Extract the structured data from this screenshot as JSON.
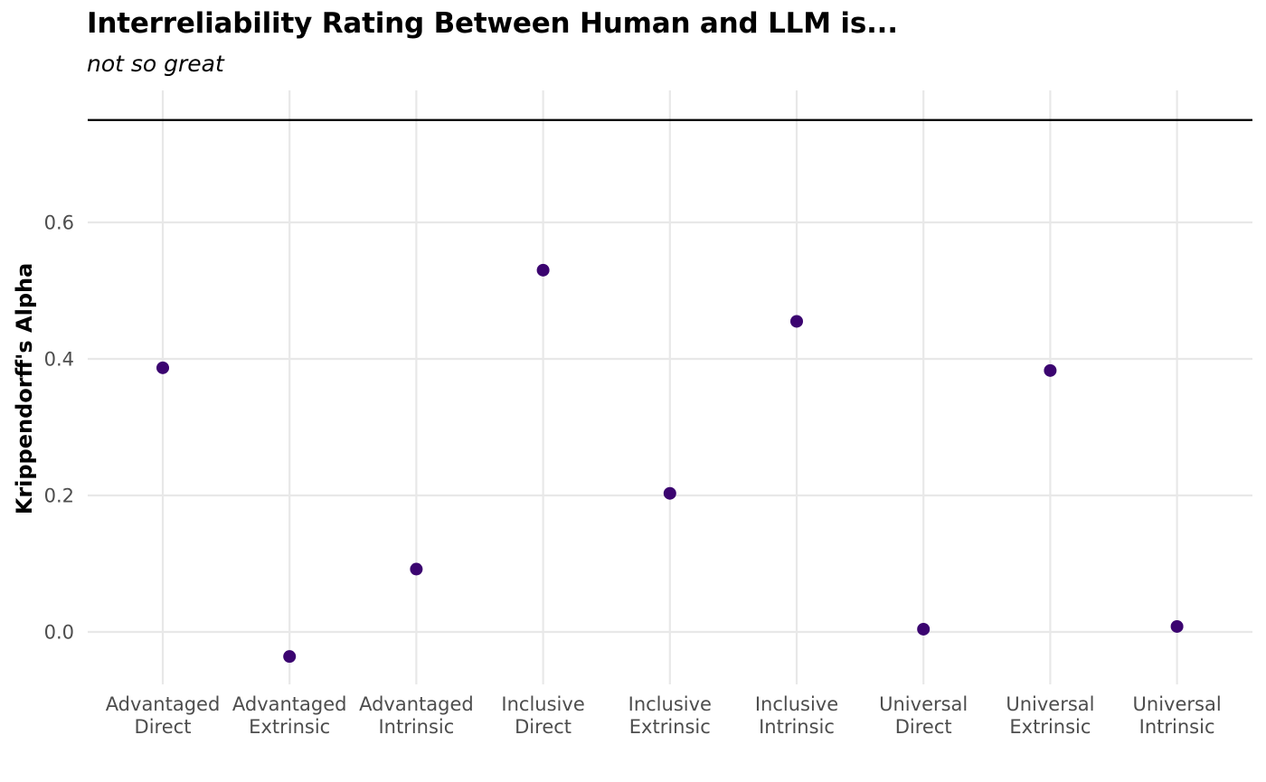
{
  "chart_data": {
    "type": "scatter",
    "title": "Interreliability Rating Between Human and LLM is...",
    "subtitle": "not so great",
    "xlabel": "",
    "ylabel": "Krippendorff's Alpha",
    "categories": [
      [
        "Advantaged",
        "Direct"
      ],
      [
        "Advantaged",
        "Extrinsic"
      ],
      [
        "Advantaged",
        "Intrinsic"
      ],
      [
        "Inclusive",
        "Direct"
      ],
      [
        "Inclusive",
        "Extrinsic"
      ],
      [
        "Inclusive",
        "Intrinsic"
      ],
      [
        "Universal",
        "Direct"
      ],
      [
        "Universal",
        "Extrinsic"
      ],
      [
        "Universal",
        "Intrinsic"
      ]
    ],
    "values": [
      0.387,
      -0.036,
      0.092,
      0.53,
      0.203,
      0.455,
      0.004,
      0.383,
      0.008
    ],
    "ylim": [
      -0.075,
      0.755
    ],
    "yticks": [
      0.0,
      0.2,
      0.4,
      0.6
    ],
    "ytick_labels": [
      "0.0",
      "0.2",
      "0.4",
      "0.6"
    ],
    "reference_line": 0.75,
    "grid": true,
    "point_color": "#3b0470",
    "reference_line_color": "#000000",
    "grid_color": "#e8e8e8"
  }
}
